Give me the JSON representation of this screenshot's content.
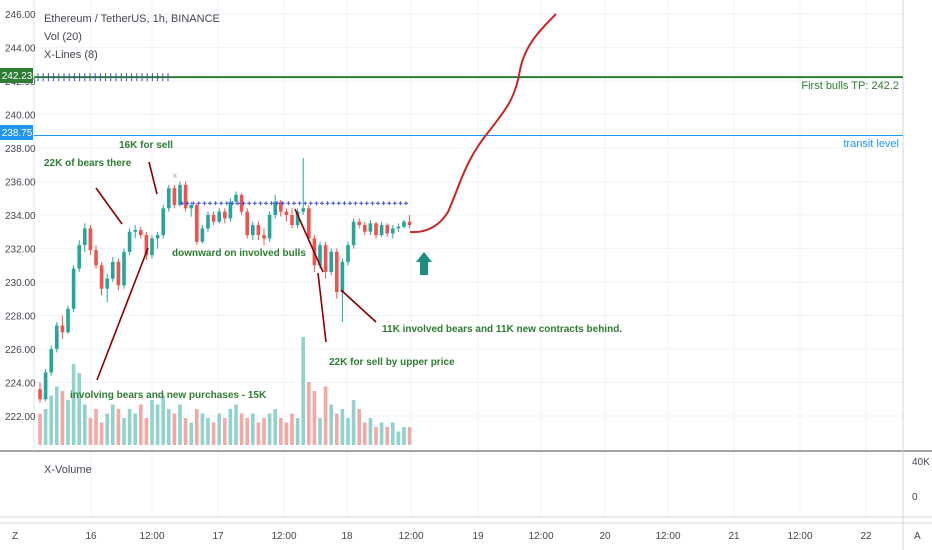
{
  "header": {
    "symbol_line": "Ethereum / TetherUS, 1h, BINANCE",
    "indicator_vol": "Vol (20)",
    "indicator_xlines": "X-Lines (8)"
  },
  "volume_pane": {
    "title": "X-Volume",
    "axis_labels": [
      "40K",
      "0"
    ]
  },
  "corner": {
    "bottom_left": "Z",
    "bottom_right": "A"
  },
  "colors": {
    "bull": "#26a69a",
    "bear": "#ef5350",
    "bull_vol": "#8fd3cc",
    "bear_vol": "#f3a8a6",
    "green_line": "#2e7d32",
    "blue_line": "#2196f3",
    "annotation": "#2e7d32",
    "arrow_curve": "#c62828",
    "dots": "#3f51d6"
  },
  "chart_data": {
    "type": "candlestick",
    "ylim": [
      220.5,
      246.6
    ],
    "y_ticks": [
      "246.00",
      "244.00",
      "242.00",
      "240.00",
      "238.00",
      "236.00",
      "234.00",
      "232.00",
      "230.00",
      "228.00",
      "226.00",
      "224.00",
      "222.00"
    ],
    "x_tick_labels": [
      "16",
      "12:00",
      "17",
      "12:00",
      "18",
      "12:00",
      "19",
      "12:00",
      "20",
      "12:00",
      "21",
      "12:00",
      "22"
    ],
    "price_levels": [
      {
        "label": "242.23",
        "value": 242.23,
        "text": "First bulls TP: 242.2",
        "color": "green"
      },
      {
        "label": "238.75",
        "value": 238.75,
        "text": "transit level",
        "color": "blue"
      }
    ],
    "annotations": [
      "16K for sell",
      "22K of bears there",
      "downward on involved bulls",
      "11K involved bears and 11K new contracts behind.",
      "22K for sell by upper price",
      "involving bears and new purchases - 15K"
    ],
    "candles": [
      [
        223.6,
        224.0,
        222.8,
        223.0
      ],
      [
        223.0,
        224.8,
        222.9,
        224.6
      ],
      [
        224.6,
        226.2,
        224.4,
        226.0
      ],
      [
        226.0,
        227.6,
        225.8,
        227.4
      ],
      [
        227.4,
        228.0,
        226.6,
        227.0
      ],
      [
        227.0,
        228.6,
        226.9,
        228.4
      ],
      [
        228.4,
        231.0,
        228.2,
        230.8
      ],
      [
        230.8,
        232.5,
        230.6,
        232.2
      ],
      [
        232.2,
        233.5,
        231.8,
        233.2
      ],
      [
        233.2,
        233.4,
        231.6,
        231.9
      ],
      [
        231.9,
        232.2,
        230.8,
        231.0
      ],
      [
        231.0,
        231.2,
        229.2,
        229.6
      ],
      [
        229.6,
        230.5,
        228.8,
        230.2
      ],
      [
        230.2,
        231.5,
        230.0,
        231.2
      ],
      [
        231.2,
        231.4,
        229.5,
        229.8
      ],
      [
        229.8,
        232.0,
        229.6,
        231.8
      ],
      [
        231.8,
        233.2,
        231.6,
        233.0
      ],
      [
        233.0,
        233.4,
        232.6,
        233.1
      ],
      [
        233.1,
        233.3,
        232.6,
        232.8
      ],
      [
        232.8,
        233.0,
        231.3,
        231.6
      ],
      [
        231.6,
        232.8,
        231.4,
        232.6
      ],
      [
        232.6,
        233.0,
        232.0,
        232.8
      ],
      [
        232.8,
        234.6,
        232.6,
        234.4
      ],
      [
        234.4,
        235.8,
        234.2,
        235.6
      ],
      [
        235.6,
        235.8,
        234.4,
        234.6
      ],
      [
        234.6,
        236.0,
        234.5,
        235.8
      ],
      [
        235.8,
        236.0,
        234.2,
        234.4
      ],
      [
        234.4,
        234.8,
        233.9,
        234.6
      ],
      [
        234.6,
        234.7,
        232.2,
        232.4
      ],
      [
        232.4,
        233.4,
        232.3,
        233.2
      ],
      [
        233.2,
        234.2,
        233.0,
        234.0
      ],
      [
        234.0,
        234.2,
        233.4,
        233.6
      ],
      [
        233.6,
        234.4,
        233.5,
        234.2
      ],
      [
        234.2,
        234.4,
        233.5,
        233.8
      ],
      [
        233.8,
        235.0,
        233.6,
        234.8
      ],
      [
        234.8,
        235.4,
        234.6,
        235.2
      ],
      [
        235.2,
        235.3,
        234.0,
        234.2
      ],
      [
        234.2,
        234.4,
        232.6,
        232.8
      ],
      [
        232.8,
        233.6,
        232.5,
        233.4
      ],
      [
        233.4,
        233.6,
        232.5,
        232.8
      ],
      [
        232.8,
        233.2,
        232.2,
        232.6
      ],
      [
        232.6,
        234.2,
        232.4,
        234.0
      ],
      [
        234.0,
        235.2,
        233.8,
        234.8
      ],
      [
        234.8,
        234.9,
        233.9,
        234.2
      ],
      [
        234.2,
        234.4,
        233.6,
        234.0
      ],
      [
        234.0,
        234.4,
        233.2,
        233.4
      ],
      [
        233.4,
        234.4,
        233.2,
        234.2
      ],
      [
        234.2,
        237.4,
        234.0,
        234.4
      ],
      [
        234.4,
        234.6,
        232.4,
        232.6
      ],
      [
        232.6,
        232.8,
        230.6,
        231.0
      ],
      [
        231.0,
        232.4,
        230.8,
        232.2
      ],
      [
        232.2,
        232.4,
        230.2,
        230.6
      ],
      [
        230.6,
        232.0,
        230.4,
        231.8
      ],
      [
        231.8,
        232.0,
        229.0,
        229.4
      ],
      [
        229.4,
        231.4,
        227.6,
        231.2
      ],
      [
        231.2,
        232.4,
        231.0,
        232.2
      ],
      [
        232.2,
        233.8,
        232.0,
        233.6
      ],
      [
        233.6,
        233.8,
        233.2,
        233.4
      ],
      [
        233.4,
        233.6,
        232.8,
        233.0
      ],
      [
        233.0,
        233.7,
        232.8,
        233.5
      ],
      [
        233.5,
        233.6,
        232.6,
        232.8
      ],
      [
        232.8,
        233.6,
        232.7,
        233.4
      ],
      [
        233.4,
        233.5,
        232.7,
        232.9
      ],
      [
        232.9,
        233.4,
        232.6,
        233.2
      ],
      [
        233.2,
        233.5,
        233.0,
        233.3
      ],
      [
        233.3,
        233.7,
        233.2,
        233.6
      ],
      [
        233.6,
        234.0,
        233.2,
        233.4
      ]
    ],
    "volumes": [
      7,
      8,
      11,
      13,
      12,
      10,
      18,
      16,
      9,
      6,
      8,
      5,
      7,
      9,
      8,
      6,
      8,
      7,
      9,
      6,
      10,
      9,
      11,
      8,
      7,
      9,
      6,
      5,
      8,
      7,
      6,
      5,
      7,
      6,
      8,
      9,
      7,
      6,
      7,
      5,
      6,
      7,
      8,
      6,
      5,
      7,
      6,
      24,
      14,
      12,
      6,
      13,
      9,
      7,
      8,
      6,
      10,
      8,
      5,
      6,
      4,
      5,
      4,
      5,
      3,
      4,
      4
    ],
    "x_line_range": [
      233.8,
      234.7
    ]
  }
}
